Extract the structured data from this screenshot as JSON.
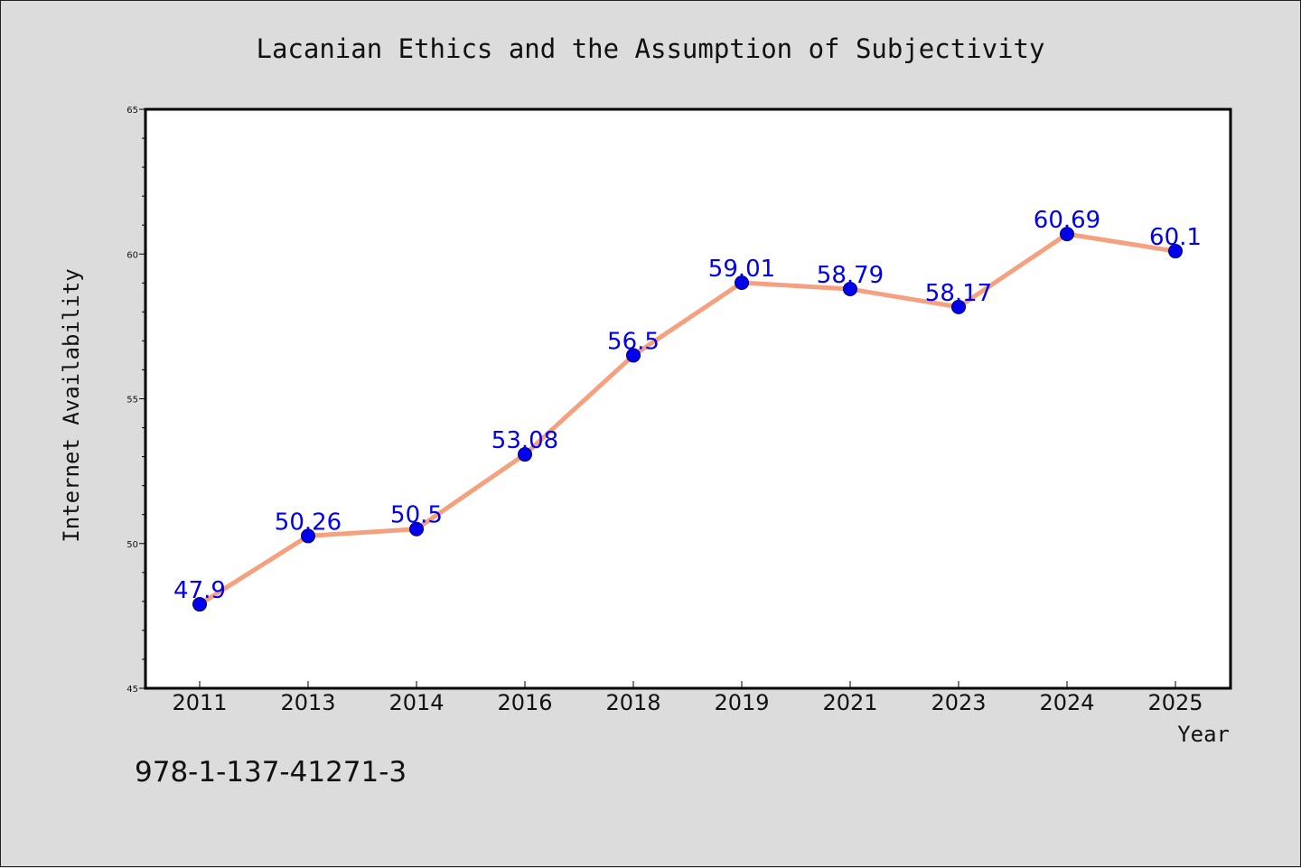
{
  "chart_data": {
    "type": "line",
    "title": "Lacanian Ethics and the Assumption of Subjectivity",
    "xlabel": "Year",
    "ylabel": "Internet Availability",
    "categories": [
      "2011",
      "2013",
      "2014",
      "2016",
      "2018",
      "2019",
      "2021",
      "2023",
      "2024",
      "2025"
    ],
    "series": [
      {
        "values": [
          47.9,
          50.26,
          50.5,
          53.08,
          56.5,
          59.01,
          58.79,
          58.17,
          60.69,
          60.1
        ],
        "labels": [
          "47.9",
          "50.26",
          "50.5",
          "53.08",
          "56.5",
          "59.01",
          "58.79",
          "58.17",
          "60.69",
          "60.1"
        ],
        "line_color": "#f5a07e",
        "marker_color": "#0000ee",
        "label_color": "#0000ee"
      }
    ],
    "ylim": [
      45,
      65
    ],
    "yticks": [
      "45",
      "50",
      "55",
      "60",
      "65"
    ],
    "y_minor_step": 1,
    "grid": false,
    "legend": "none"
  },
  "annotation": "978-1-137-41271-3",
  "colors": {
    "figure_background": "#dcdcdc",
    "plot_background": "#ffffff",
    "text": "#111111",
    "axis": "#000000"
  }
}
